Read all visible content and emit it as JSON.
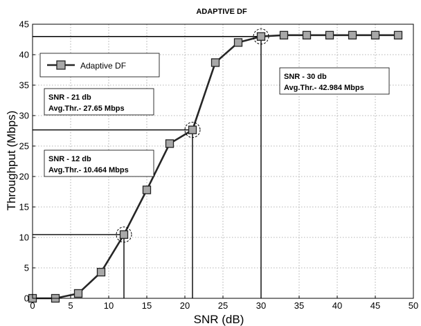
{
  "chart_data": {
    "type": "line",
    "title": "ADAPTIVE DF",
    "xlabel": "SNR (dB)",
    "ylabel": "Throughput (Mbps)",
    "xlim": [
      0,
      50
    ],
    "ylim": [
      0,
      45
    ],
    "xticks": [
      0,
      5,
      10,
      15,
      20,
      25,
      30,
      35,
      40,
      45,
      50
    ],
    "yticks": [
      0,
      5,
      10,
      15,
      20,
      25,
      30,
      35,
      40,
      45
    ],
    "grid": true,
    "legend_position": "top-left",
    "series": [
      {
        "name": "Adaptive DF",
        "x": [
          0,
          3,
          6,
          9,
          12,
          15,
          18,
          21,
          24,
          27,
          30,
          33,
          36,
          39,
          42,
          45,
          48
        ],
        "y": [
          0,
          0,
          0.8,
          4.3,
          10.464,
          17.8,
          25.4,
          27.65,
          38.7,
          42.0,
          42.984,
          43.2,
          43.2,
          43.2,
          43.2,
          43.2,
          43.2
        ]
      }
    ],
    "annotations": [
      {
        "x": 12,
        "y": 10.464,
        "line1": "SNR - 12 db",
        "line2": "Avg.Thr.- 10.464 Mbps"
      },
      {
        "x": 21,
        "y": 27.65,
        "line1": "SNR - 21 db",
        "line2": "Avg.Thr.- 27.65 Mbps"
      },
      {
        "x": 30,
        "y": 42.984,
        "line1": "SNR - 30 db",
        "line2": "Avg.Thr.- 42.984 Mbps"
      }
    ]
  }
}
